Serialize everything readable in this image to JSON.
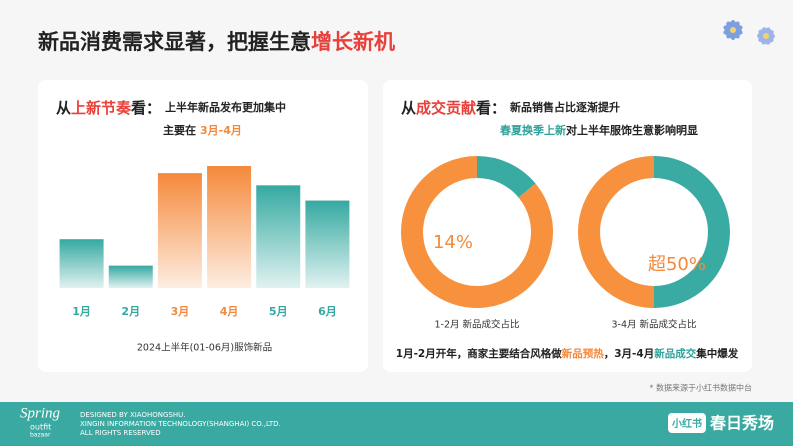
{
  "header": {
    "title": "新品消费需求显著，把握生意",
    "title_highlight": "增长新机"
  },
  "left_panel": {
    "heading_prefix": "从",
    "heading_highlight": "上新节奏",
    "heading_suffix": "看：",
    "line1": "上半年新品发布更加集中",
    "line2_prefix": "主要在",
    "line2_highlight": "3月-4月"
  },
  "right_panel": {
    "heading_prefix": "从",
    "heading_highlight": "成交贡献",
    "heading_suffix": "看：",
    "line1": "新品销售占比逐渐提升",
    "line2_highlight": "春夏换季上新",
    "line2_suffix": "对上半年服饰生意影响明显",
    "summary": [
      "1月-2月开年，商家主要结合风格做",
      "新品预热",
      "，3月-4月",
      "新品成交",
      "集中爆发"
    ]
  },
  "chart_data": [
    {
      "type": "bar",
      "categories": [
        "1月",
        "2月",
        "3月",
        "4月",
        "5月",
        "6月"
      ],
      "values": [
        48,
        22,
        113,
        120,
        101,
        86
      ],
      "colors": [
        "#35a9a1",
        "#35a9a1",
        "#f5893b",
        "#f5893b",
        "#35a9a1",
        "#35a9a1"
      ],
      "caption": "2024上半年(01-06月)服饰新品"
    },
    {
      "type": "pie",
      "title": "1-2月 新品成交占比",
      "values": [
        14,
        86
      ],
      "value_labels": [
        "14%",
        null
      ],
      "colors": [
        "#3aaba3",
        "#f7913d"
      ]
    },
    {
      "type": "pie",
      "title": "3-4月 新品成交占比",
      "values": [
        50,
        50
      ],
      "value_labels": [
        "超50%",
        null
      ],
      "colors": [
        "#3aaba3",
        "#f7913d"
      ]
    }
  ],
  "footnote": "* 数据来源于小红书数据中台",
  "footer": {
    "logo": [
      "Spring",
      "outfit",
      "bazaar"
    ],
    "credits": [
      "DESIGNED BY XIAOHONGSHU.",
      "XINGIN INFORMATION TECHNOLOGY(SHANGHAI) CO.,LTD.",
      "ALL RIGHTS RESERVED"
    ],
    "badge": "小红书",
    "brand": "春日秀场"
  }
}
